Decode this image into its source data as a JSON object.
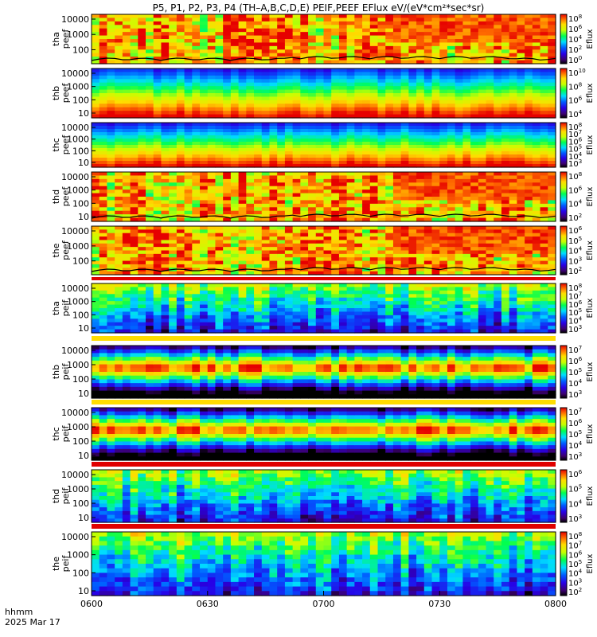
{
  "chart_data": {
    "type": "heatmap",
    "title": "P5, P1, P2, P3, P4 (TH–A,B,C,D,E) PEIF,PEEF EFlux eV/(eV*cm²*sec*sr)",
    "x_ticks": [
      "0600",
      "0630",
      "0700",
      "0730",
      "0800"
    ],
    "x_range": [
      "0600",
      "0800"
    ],
    "footer_line1": "hhmm",
    "footer_line2": "2025 Mar 17",
    "y_scale": "log",
    "colorbar_label": "Eflux",
    "panels": [
      {
        "name": "tha_peef",
        "label_line1": "tha",
        "label_line2": "peef",
        "species": "electron",
        "y_ticks": [
          "10000",
          "1000",
          "100"
        ],
        "cbar_ticks": [
          {
            "m": "10",
            "e": "8"
          },
          {
            "m": "10",
            "e": "6"
          },
          {
            "m": "10",
            "e": "4"
          },
          {
            "m": "10",
            "e": "2"
          },
          {
            "m": "10",
            "e": "0"
          }
        ],
        "spacecraft_potential_line": true
      },
      {
        "name": "thb_peef",
        "label_line1": "thb",
        "label_line2": "peef",
        "species": "electron",
        "y_ticks": [
          "10000",
          "1000",
          "100",
          "10"
        ],
        "cbar_ticks": [
          {
            "m": "10",
            "e": "10"
          },
          {
            "m": "10",
            "e": "8"
          },
          {
            "m": "10",
            "e": "6"
          },
          {
            "m": "10",
            "e": "4"
          }
        ],
        "spacecraft_potential_line": false
      },
      {
        "name": "thc_peef",
        "label_line1": "thc",
        "label_line2": "peef",
        "species": "electron",
        "y_ticks": [
          "10000",
          "1000",
          "100",
          "10"
        ],
        "cbar_ticks": [
          {
            "m": "10",
            "e": "8"
          },
          {
            "m": "10",
            "e": "7"
          },
          {
            "m": "10",
            "e": "6"
          },
          {
            "m": "10",
            "e": "5"
          },
          {
            "m": "10",
            "e": "4"
          },
          {
            "m": "10",
            "e": "3"
          }
        ],
        "spacecraft_potential_line": false
      },
      {
        "name": "thd_peef",
        "label_line1": "thd",
        "label_line2": "peef",
        "species": "electron",
        "y_ticks": [
          "10000",
          "1000",
          "100",
          "10"
        ],
        "cbar_ticks": [
          {
            "m": "10",
            "e": "8"
          },
          {
            "m": "10",
            "e": "6"
          },
          {
            "m": "10",
            "e": "4"
          },
          {
            "m": "10",
            "e": "2"
          }
        ],
        "spacecraft_potential_line": true
      },
      {
        "name": "the_peef",
        "label_line1": "the",
        "label_line2": "peef",
        "species": "electron",
        "y_ticks": [
          "10000",
          "1000",
          "100"
        ],
        "cbar_ticks": [
          {
            "m": "10",
            "e": "6"
          },
          {
            "m": "10",
            "e": "5"
          },
          {
            "m": "10",
            "e": "4"
          },
          {
            "m": "10",
            "e": "3"
          },
          {
            "m": "10",
            "e": "2"
          }
        ],
        "spacecraft_potential_line": true
      },
      {
        "name": "tha_peif",
        "label_line1": "tha",
        "label_line2": "peif",
        "species": "ion",
        "y_ticks": [
          "10000",
          "1000",
          "100",
          "10"
        ],
        "cbar_ticks": [
          {
            "m": "10",
            "e": "8"
          },
          {
            "m": "10",
            "e": "7"
          },
          {
            "m": "10",
            "e": "6"
          },
          {
            "m": "10",
            "e": "5"
          },
          {
            "m": "10",
            "e": "4"
          },
          {
            "m": "10",
            "e": "3"
          }
        ],
        "spacecraft_potential_line": false
      },
      {
        "name": "thb_peif",
        "label_line1": "thb",
        "label_line2": "peif",
        "species": "ion",
        "y_ticks": [
          "10000",
          "1000",
          "100",
          "10"
        ],
        "cbar_ticks": [
          {
            "m": "10",
            "e": "7"
          },
          {
            "m": "10",
            "e": "6"
          },
          {
            "m": "10",
            "e": "5"
          },
          {
            "m": "10",
            "e": "4"
          },
          {
            "m": "10",
            "e": "3"
          }
        ],
        "spacecraft_potential_line": false
      },
      {
        "name": "thc_peif",
        "label_line1": "thc",
        "label_line2": "peif",
        "species": "ion",
        "y_ticks": [
          "10000",
          "1000",
          "100",
          "10"
        ],
        "cbar_ticks": [
          {
            "m": "10",
            "e": "7"
          },
          {
            "m": "10",
            "e": "6"
          },
          {
            "m": "10",
            "e": "5"
          },
          {
            "m": "10",
            "e": "4"
          },
          {
            "m": "10",
            "e": "3"
          }
        ],
        "spacecraft_potential_line": false
      },
      {
        "name": "thd_peif",
        "label_line1": "thd",
        "label_line2": "peif",
        "species": "ion",
        "y_ticks": [
          "10000",
          "1000",
          "100",
          "10"
        ],
        "cbar_ticks": [
          {
            "m": "10",
            "e": "6"
          },
          {
            "m": "10",
            "e": "5"
          },
          {
            "m": "10",
            "e": "4"
          },
          {
            "m": "10",
            "e": "3"
          }
        ],
        "spacecraft_potential_line": false
      },
      {
        "name": "the_peif",
        "label_line1": "the",
        "label_line2": "peif",
        "species": "ion",
        "y_ticks": [
          "10000",
          "1000",
          "100",
          "10"
        ],
        "cbar_ticks": [
          {
            "m": "10",
            "e": "8"
          },
          {
            "m": "10",
            "e": "7"
          },
          {
            "m": "10",
            "e": "6"
          },
          {
            "m": "10",
            "e": "5"
          },
          {
            "m": "10",
            "e": "4"
          },
          {
            "m": "10",
            "e": "3"
          },
          {
            "m": "10",
            "e": "2"
          }
        ],
        "spacecraft_potential_line": false
      }
    ]
  }
}
